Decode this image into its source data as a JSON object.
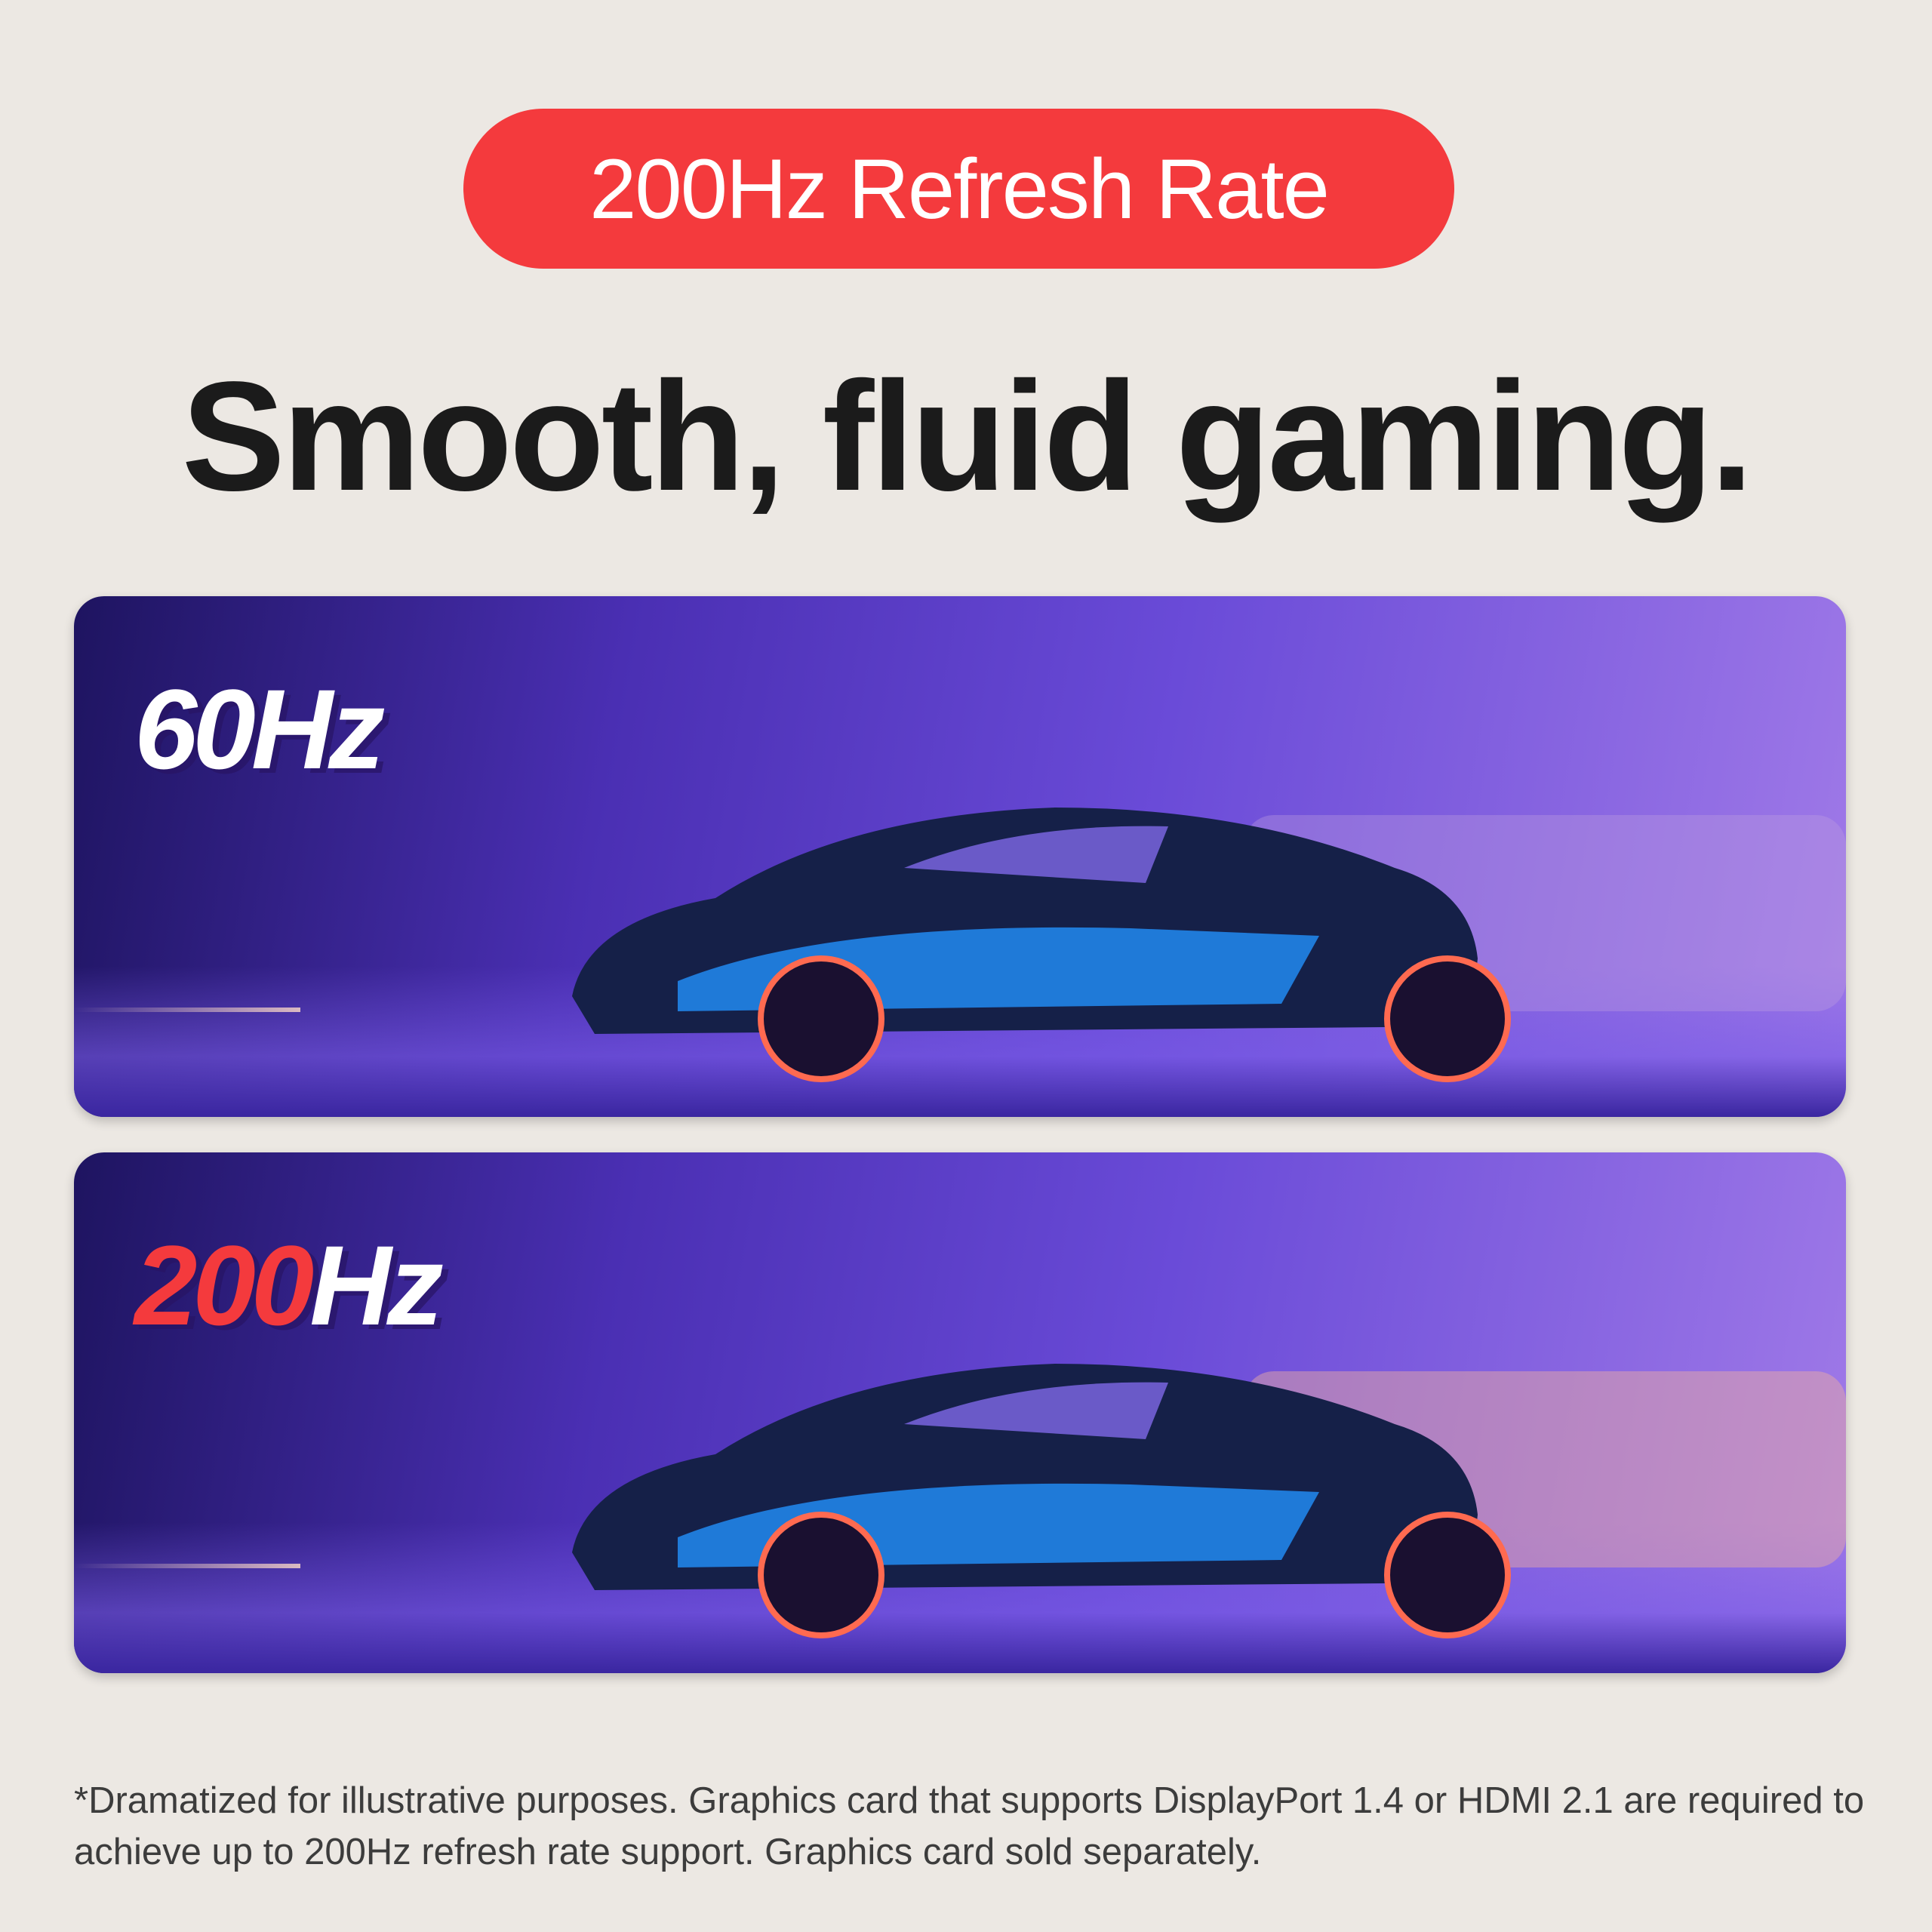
{
  "badge": {
    "label": "200Hz Refresh Rate",
    "color": "#f43a3d"
  },
  "headline": "Smooth, fluid gaming.",
  "panels": [
    {
      "label": "60Hz"
    },
    {
      "label_accent": "200",
      "label_rest": "Hz"
    }
  ],
  "footnote": "*Dramatized for illustrative purposes. Graphics card that supports DisplayPort 1.4 or HDMI 2.1 are required to achieve up to 200Hz refresh rate support. Graphics card sold separately."
}
